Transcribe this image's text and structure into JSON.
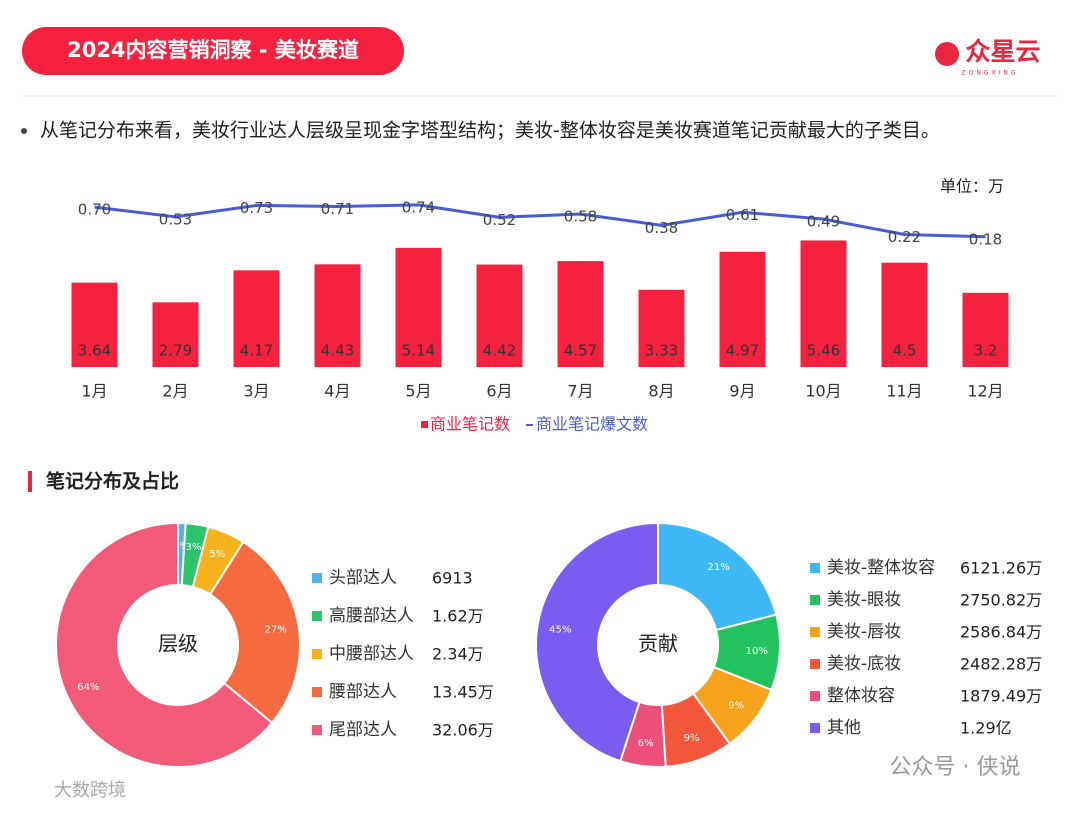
{
  "header": {
    "title": "2024内容营销洞察 - 美妆赛道",
    "logo": "众星云",
    "logo_sub": "ZONGXING"
  },
  "bullet": "从笔记分布来看，美妆行业达人层级呈现金字塔型结构；美妆-整体妆容是美妆赛道笔记贡献最大的子类目。",
  "section_title": "笔记分布及占比",
  "watermarks": [
    "公众号 · 侠说",
    "大数跨境"
  ],
  "chart_data": [
    {
      "type": "bar",
      "unit_label": "单位：万",
      "categories": [
        "1月",
        "2月",
        "3月",
        "4月",
        "5月",
        "6月",
        "7月",
        "8月",
        "9月",
        "10月",
        "11月",
        "12月"
      ],
      "ylim": [
        0,
        8.5
      ],
      "y2lim": [
        -2.1,
        1.35
      ],
      "series": [
        {
          "name": "商业笔记数",
          "type": "bar",
          "color": "#f5213f",
          "values": [
            3.64,
            2.79,
            4.17,
            4.43,
            5.14,
            4.42,
            4.57,
            3.33,
            4.97,
            5.46,
            4.5,
            3.2
          ]
        },
        {
          "name": "商业笔记爆文数",
          "type": "line",
          "axis": "y2",
          "color": "#4a5bd6",
          "values": [
            0.7,
            0.53,
            0.73,
            0.71,
            0.74,
            0.52,
            0.58,
            0.38,
            0.61,
            0.49,
            0.22,
            0.18
          ],
          "value_labels": [
            "0.70",
            "0.53",
            "0.73",
            "0.71",
            "0.74",
            "0.52",
            "0.58",
            "0.38",
            "0.61",
            "0.49",
            "0.22",
            "0.18"
          ]
        }
      ]
    },
    {
      "type": "pie",
      "center_label": "层级",
      "categories": [
        "头部达人",
        "高腰部达人",
        "中腰部达人",
        "腰部达人",
        "尾部达人"
      ],
      "values": [
        1,
        3,
        5,
        27,
        64
      ],
      "value_labels": [
        "1%",
        "3%",
        "5%",
        "27%",
        "64%"
      ],
      "legend_values": [
        "6913",
        "1.62万",
        "2.34万",
        "13.45万",
        "32.06万"
      ],
      "colors": [
        "#4fb3f0",
        "#2ec46e",
        "#f6b21a",
        "#f56a3f",
        "#f25a7a"
      ]
    },
    {
      "type": "pie",
      "center_label": "贡献",
      "categories": [
        "美妆-整体妆容",
        "美妆-眼妆",
        "美妆-唇妆",
        "美妆-底妆",
        "整体妆容",
        "其他"
      ],
      "values": [
        21,
        10,
        9,
        9,
        6,
        45
      ],
      "value_labels": [
        "21%",
        "10%",
        "9%",
        "9%",
        "6%",
        "45%"
      ],
      "legend_values": [
        "6121.26万",
        "2750.82万",
        "2586.84万",
        "2482.28万",
        "1879.49万",
        "1.29亿"
      ],
      "colors": [
        "#3db8f5",
        "#22c35e",
        "#f7a21b",
        "#f5573b",
        "#ec4f7a",
        "#7b5cf0"
      ]
    }
  ]
}
